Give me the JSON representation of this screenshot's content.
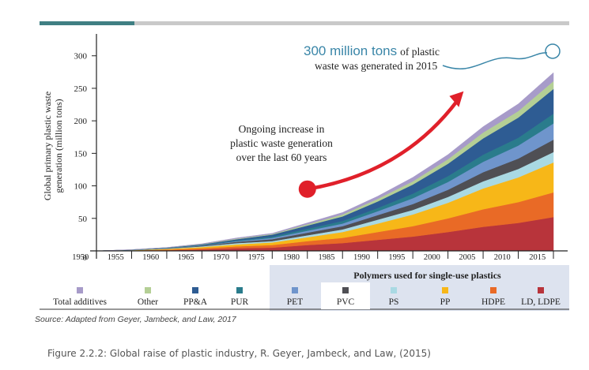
{
  "chart_data": {
    "type": "area",
    "stacked": true,
    "ylabel_line1": "Global primary plastic waste",
    "ylabel_line2": "generation (million tons)",
    "ylim": [
      0,
      330
    ],
    "yticks": [
      0,
      50,
      100,
      150,
      200,
      250,
      300
    ],
    "x": [
      1950,
      1955,
      1960,
      1965,
      1970,
      1975,
      1980,
      1985,
      1990,
      1995,
      2000,
      2005,
      2010,
      2015
    ],
    "xtick_labels": [
      "1950",
      "1955",
      "1960",
      "1965",
      "1970",
      "1975",
      "1980",
      "1985",
      "1990",
      "1995",
      "2000",
      "2005",
      "2010",
      "2015"
    ],
    "series": [
      {
        "name": "LD, LDPE",
        "color": "#b8343b",
        "values": [
          0,
          0.5,
          1,
          2,
          4,
          5,
          9,
          12,
          17,
          22,
          29,
          37,
          43,
          52
        ]
      },
      {
        "name": "HDPE",
        "color": "#e96a26",
        "values": [
          0,
          0.3,
          1,
          2,
          3,
          4,
          6,
          8,
          12,
          16,
          21,
          27,
          32,
          38
        ]
      },
      {
        "name": "PP",
        "color": "#f7b718",
        "values": [
          0,
          0.3,
          1,
          2,
          3,
          4,
          6,
          9,
          13,
          18,
          24,
          32,
          38,
          46
        ]
      },
      {
        "name": "PS",
        "color": "#a9d9e3",
        "values": [
          0,
          0.2,
          0.5,
          1,
          2,
          2,
          3,
          4,
          6,
          7,
          9,
          11,
          13,
          16
        ]
      },
      {
        "name": "PVC",
        "color": "#4f4f54",
        "values": [
          0,
          0.2,
          0.5,
          1,
          2,
          3,
          4,
          5,
          7,
          9,
          11,
          14,
          16,
          19
        ]
      },
      {
        "name": "PET",
        "color": "#6f95cc",
        "values": [
          0,
          0.1,
          0.3,
          0.5,
          1,
          2,
          3,
          4,
          6,
          9,
          12,
          16,
          20,
          25
        ]
      },
      {
        "name": "PUR",
        "color": "#2a7c8c",
        "values": [
          0,
          0.1,
          0.3,
          0.5,
          1,
          2,
          3,
          4,
          5,
          7,
          9,
          11,
          12,
          15
        ]
      },
      {
        "name": "PP&A",
        "color": "#2e5c93",
        "values": [
          0,
          0.1,
          0.3,
          1,
          2,
          3,
          5,
          7,
          10,
          14,
          19,
          25,
          31,
          38
        ]
      },
      {
        "name": "Other",
        "color": "#b4cf95",
        "values": [
          0,
          0.1,
          0.2,
          0.5,
          1,
          1,
          2,
          3,
          4,
          5,
          7,
          9,
          10,
          12
        ]
      },
      {
        "name": "Total additives",
        "color": "#a79bc9",
        "values": [
          0,
          0.1,
          0.2,
          0.5,
          1,
          1,
          2,
          3,
          4,
          6,
          7,
          9,
          11,
          13
        ]
      }
    ],
    "legend_group_title": "Polymers used for single-use plastics",
    "legend_group_members": [
      "PET",
      "PVC",
      "PS",
      "PP",
      "HDPE",
      "LD, LDPE"
    ],
    "legend_placement": "bottom",
    "grid": false,
    "annotations": {
      "callout_big": "300 million tons",
      "callout_rest": "of plastic",
      "callout_line2": "waste was generated in 2015",
      "trend_line1": "Ongoing increase in",
      "trend_line2": "plastic waste generation",
      "trend_line3": "over the last 60 years"
    },
    "callout_target": {
      "x": 2015,
      "y": 307
    },
    "arrow": {
      "from": {
        "x": 1980,
        "y": 95
      },
      "to": {
        "x": 2002,
        "y": 243
      }
    },
    "source": "Source:  Adapted from Geyer, Jambeck, and Law, 2017",
    "colors": {
      "accent": "#3f7f83",
      "callout": "#3a86a8",
      "arrow": "#e0202a",
      "group_band": "#dde3ef"
    }
  },
  "caption": "Figure 2.2.2: Global raise of plastic industry, R. Geyer, Jambeck, and Law, (2015)"
}
